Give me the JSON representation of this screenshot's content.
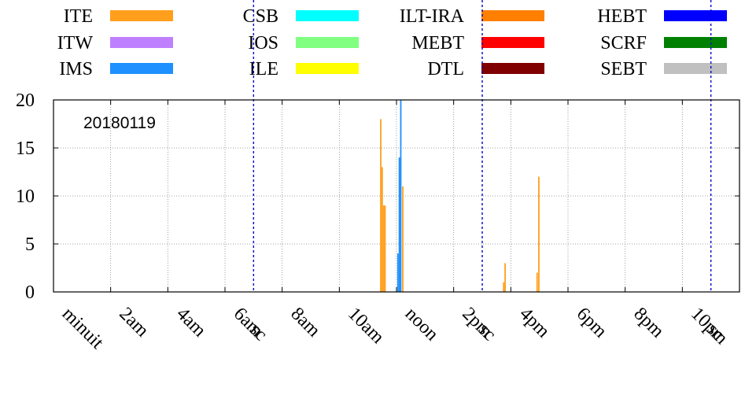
{
  "chart_data": {
    "type": "bar",
    "annotation": "20180119",
    "ylim": [
      0,
      20
    ],
    "yticks": [
      0,
      5,
      10,
      15,
      20
    ],
    "xlim": [
      0,
      24
    ],
    "xticks": [
      {
        "label": "minuit",
        "hour": 0
      },
      {
        "label": "2am",
        "hour": 2
      },
      {
        "label": "4am",
        "hour": 4
      },
      {
        "label": "6am",
        "hour": 6
      },
      {
        "label": "8am",
        "hour": 8
      },
      {
        "label": "10am",
        "hour": 10
      },
      {
        "label": "noon",
        "hour": 12
      },
      {
        "label": "2pm",
        "hour": 14
      },
      {
        "label": "4pm",
        "hour": 16
      },
      {
        "label": "6pm",
        "hour": 18
      },
      {
        "label": "8pm",
        "hour": 20
      },
      {
        "label": "10pm",
        "hour": 22
      }
    ],
    "shift_markers": [
      {
        "label": "sc",
        "hour": 7
      },
      {
        "label": "sc",
        "hour": 15
      },
      {
        "label": "sc",
        "hour": 23
      }
    ],
    "grid": true,
    "legend_placement": "top",
    "series": [
      {
        "name": "ITE",
        "color": "#ff9f1c"
      },
      {
        "name": "ITW",
        "color": "#bf80ff"
      },
      {
        "name": "IMS",
        "color": "#1e90ff"
      },
      {
        "name": "CSB",
        "color": "#00ffff"
      },
      {
        "name": "IOS",
        "color": "#80ff80"
      },
      {
        "name": "ILE",
        "color": "#ffff00"
      },
      {
        "name": "ILT-IRA",
        "color": "#ff8000"
      },
      {
        "name": "MEBT",
        "color": "#ff0000"
      },
      {
        "name": "DTL",
        "color": "#800000"
      },
      {
        "name": "HEBT",
        "color": "#0000ff"
      },
      {
        "name": "SCRF",
        "color": "#008000"
      },
      {
        "name": "SEBT",
        "color": "#c0c0c0"
      }
    ],
    "bars": [
      {
        "series": "ITE",
        "hour": 11.45,
        "value": 18
      },
      {
        "series": "ITE",
        "hour": 11.5,
        "value": 13
      },
      {
        "series": "ITE",
        "hour": 11.55,
        "value": 9
      },
      {
        "series": "ITE",
        "hour": 11.6,
        "value": 9
      },
      {
        "series": "IMS",
        "hour": 12.05,
        "value": 4
      },
      {
        "series": "IMS",
        "hour": 12.1,
        "value": 14
      },
      {
        "series": "IMS",
        "hour": 12.15,
        "value": 20
      },
      {
        "series": "ITE",
        "hour": 12.22,
        "value": 11
      },
      {
        "series": "ITE",
        "hour": 15.75,
        "value": 1
      },
      {
        "series": "ITE",
        "hour": 15.8,
        "value": 3
      },
      {
        "series": "ITE",
        "hour": 16.92,
        "value": 2
      },
      {
        "series": "ITE",
        "hour": 16.98,
        "value": 12
      }
    ]
  }
}
